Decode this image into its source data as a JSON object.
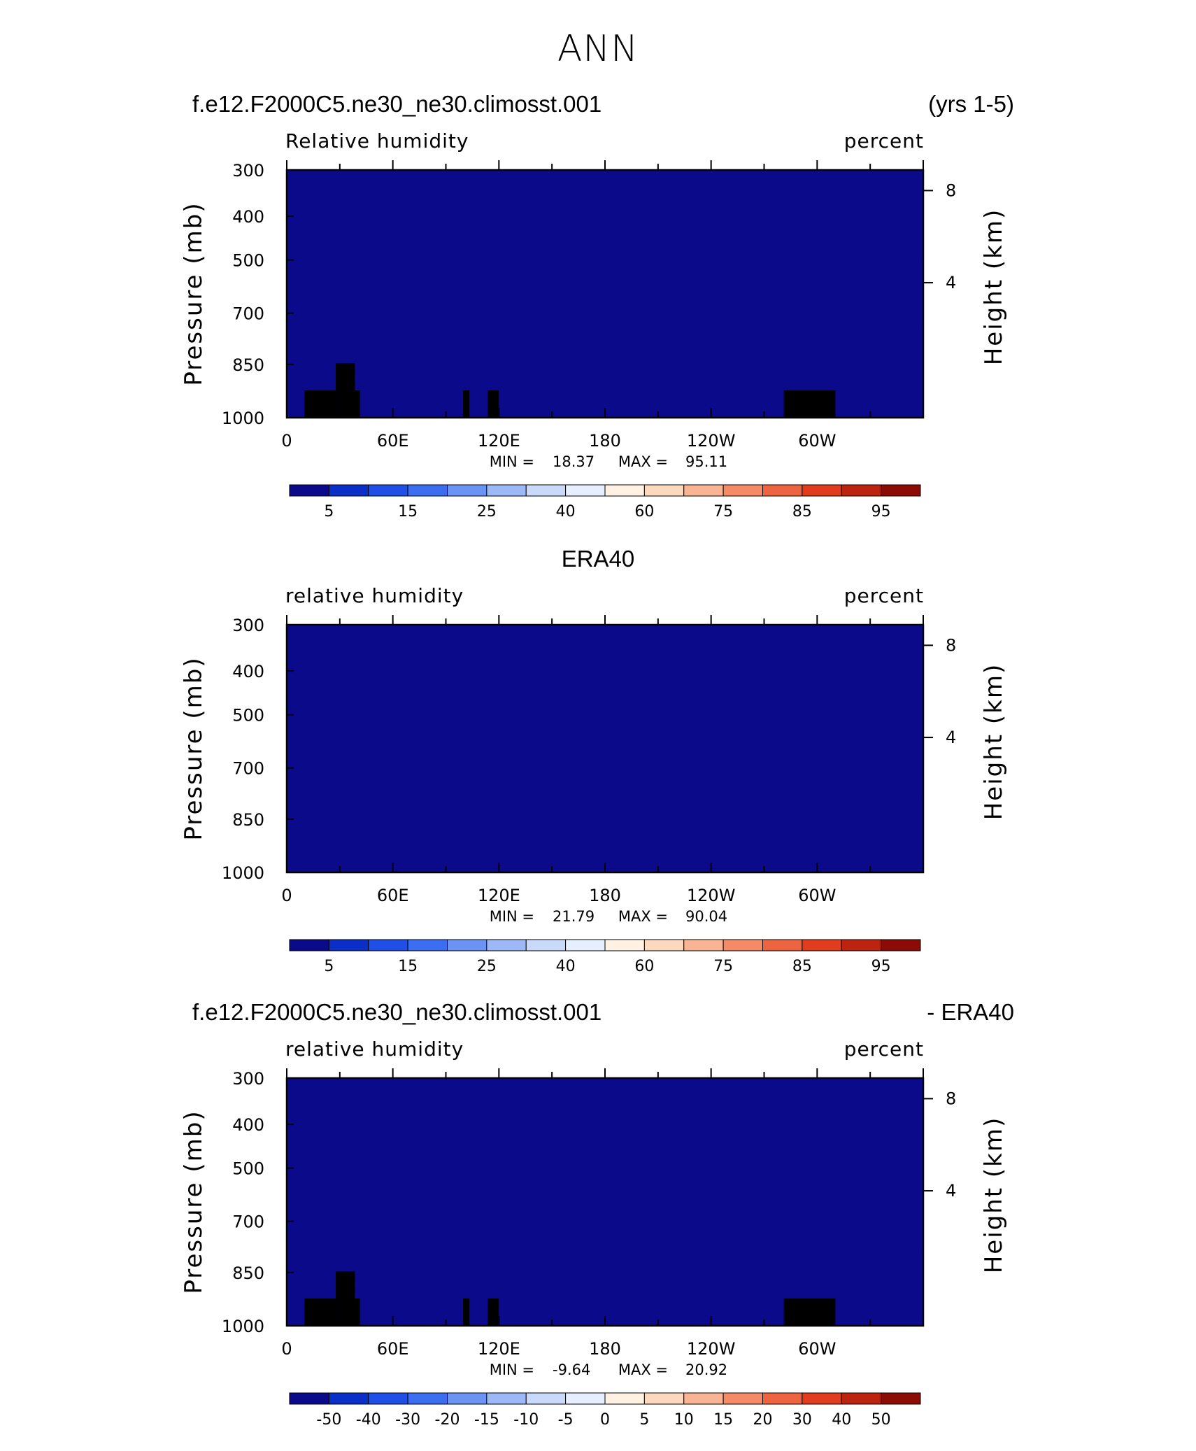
{
  "page_title": "ANN",
  "colors": {
    "palette": [
      "#0a0a8a",
      "#0a2fc8",
      "#1f4fe6",
      "#3b6ef0",
      "#6a93f3",
      "#9cb8f6",
      "#c9d9fa",
      "#e6efff",
      "#fff2e2",
      "#fcd8bf",
      "#f9b493",
      "#f48b66",
      "#ee6340",
      "#e03c1d",
      "#bc2410",
      "#8c0c05"
    ],
    "land_mask": "#000000"
  },
  "chart_data": [
    {
      "type": "heatmap",
      "title_left": "f.e12.F2000C5.ne30_ne30.climosst.001",
      "title_right": "(yrs 1-5)",
      "variable_label": "Relative humidity",
      "unit_label": "percent",
      "ylabel": "Pressure (mb)",
      "ylabel_right": "Height (km)",
      "y_ticks": [
        "300",
        "400",
        "500",
        "700",
        "850",
        "1000"
      ],
      "y_right_ticks": [
        "8",
        "4"
      ],
      "x_ticks": [
        "0",
        "60E",
        "120E",
        "180",
        "120W",
        "60W"
      ],
      "min_label": "MIN =",
      "min_value": "18.37",
      "max_label": "MAX =",
      "max_value": "95.11",
      "colorbar_labels": [
        "5",
        "15",
        "25",
        "40",
        "60",
        "75",
        "85",
        "95"
      ],
      "field": "model",
      "land_mask": true
    },
    {
      "type": "heatmap",
      "title_center": "ERA40",
      "variable_label": "relative humidity",
      "unit_label": "percent",
      "ylabel": "Pressure (mb)",
      "ylabel_right": "Height (km)",
      "y_ticks": [
        "300",
        "400",
        "500",
        "700",
        "850",
        "1000"
      ],
      "y_right_ticks": [
        "8",
        "4"
      ],
      "x_ticks": [
        "0",
        "60E",
        "120E",
        "180",
        "120W",
        "60W"
      ],
      "min_label": "MIN =",
      "min_value": "21.79",
      "max_label": "MAX =",
      "max_value": "90.04",
      "colorbar_labels": [
        "5",
        "15",
        "25",
        "40",
        "60",
        "75",
        "85",
        "95"
      ],
      "field": "obs",
      "land_mask": false
    },
    {
      "type": "heatmap",
      "title_left": "f.e12.F2000C5.ne30_ne30.climosst.001",
      "title_right": "- ERA40",
      "variable_label": "relative humidity",
      "unit_label": "percent",
      "ylabel": "Pressure (mb)",
      "ylabel_right": "Height (km)",
      "y_ticks": [
        "300",
        "400",
        "500",
        "700",
        "850",
        "1000"
      ],
      "y_right_ticks": [
        "8",
        "4"
      ],
      "x_ticks": [
        "0",
        "60E",
        "120E",
        "180",
        "120W",
        "60W"
      ],
      "min_label": "MIN =",
      "min_value": "-9.64",
      "max_label": "MAX =",
      "max_value": "20.92",
      "colorbar_labels": [
        "-50",
        "-40",
        "-30",
        "-20",
        "-15",
        "-10",
        "-5",
        "0",
        "5",
        "10",
        "15",
        "20",
        "30",
        "40",
        "50"
      ],
      "field": "diff",
      "land_mask": true
    }
  ]
}
